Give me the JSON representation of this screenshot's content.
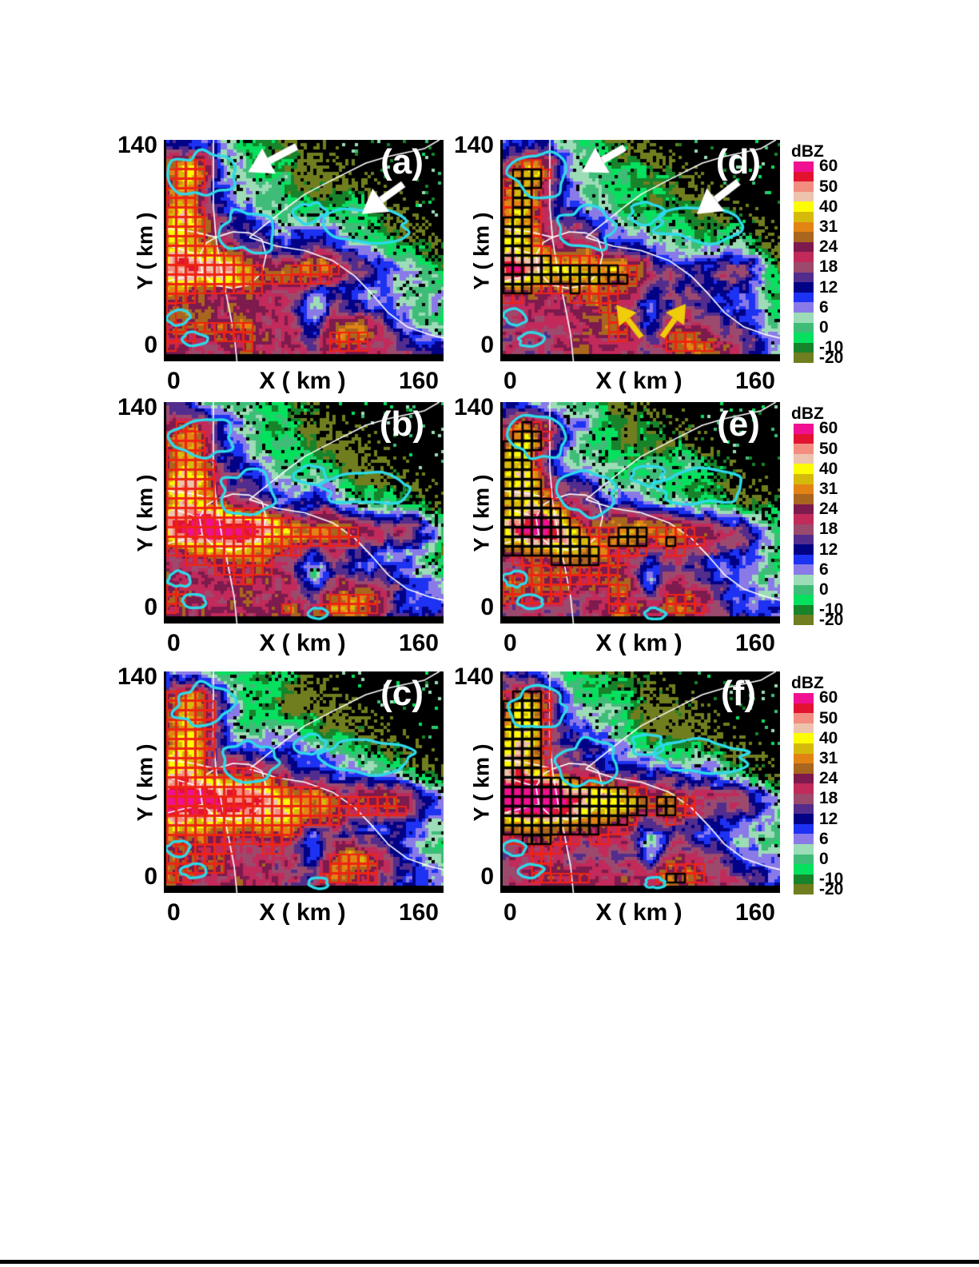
{
  "axes": {
    "y_max": "140",
    "y_min": "0",
    "y_title": "Y ( km )",
    "x_min": "0",
    "x_title": "X ( km )",
    "x_max": "160"
  },
  "chart_data": {
    "type": "heatmap",
    "subtype": "radar-reflectivity-composite",
    "xlabel": "X ( km )",
    "ylabel": "Y ( km )",
    "xlim": [
      0,
      160
    ],
    "ylim": [
      0,
      140
    ],
    "units": "dBZ",
    "grid": false,
    "colorbar": {
      "title": "dBZ",
      "position": "right-of-each-row",
      "n_cells": 20,
      "cell_colors": [
        "#ef1192",
        "#e11331",
        "#f28d80",
        "#eec3ad",
        "#fcfc05",
        "#d5ba0c",
        "#e28414",
        "#a9661f",
        "#7d1a4e",
        "#c12a5a",
        "#9b4a6e",
        "#532d8d",
        "#020287",
        "#1d32f2",
        "#8a7ae8",
        "#9cdcb6",
        "#3fbc78",
        "#06e05f",
        "#17832a",
        "#707e1f"
      ],
      "tick_values": [
        "60",
        "50",
        "40",
        "31",
        "24",
        "18",
        "12",
        "6",
        "0",
        "-10",
        "-20"
      ],
      "tick_cell_index": [
        1,
        3,
        5,
        7,
        9,
        11,
        13,
        15,
        17,
        19,
        20
      ],
      "value_top": 60,
      "value_bottom": -20
    },
    "overlay_colors": {
      "red_grid_box": "#ee2413",
      "black_grid_box": "#000000",
      "cyan_contour": "#2fd9e9",
      "county_border": "#ffffff"
    },
    "panels": [
      {
        "label": "(a)",
        "position": {
          "row": 1,
          "col": 1
        },
        "overlays": [
          "red-grid-boxes",
          "cyan-contours",
          "county-borders"
        ],
        "annotations": [
          {
            "type": "arrow",
            "color_name": "white",
            "color": "#ffffff",
            "from_frac": [
              0.47,
              0.03
            ],
            "to_frac": [
              0.295,
              0.145
            ]
          },
          {
            "type": "arrow",
            "color_name": "white",
            "color": "#ffffff",
            "from_frac": [
              0.855,
              0.2
            ],
            "to_frac": [
              0.705,
              0.335
            ]
          }
        ]
      },
      {
        "label": "(b)",
        "position": {
          "row": 2,
          "col": 1
        },
        "overlays": [
          "red-grid-boxes",
          "cyan-contours",
          "county-borders"
        ],
        "annotations": []
      },
      {
        "label": "(c)",
        "position": {
          "row": 3,
          "col": 1
        },
        "overlays": [
          "red-grid-boxes",
          "cyan-contours",
          "county-borders"
        ],
        "annotations": []
      },
      {
        "label": "(d)",
        "position": {
          "row": 1,
          "col": 2
        },
        "overlays": [
          "red-grid-boxes",
          "black-grid-boxes",
          "cyan-contours",
          "county-borders"
        ],
        "annotations": [
          {
            "type": "arrow",
            "color_name": "white",
            "color": "#ffffff",
            "from_frac": [
              0.44,
              0.035
            ],
            "to_frac": [
              0.285,
              0.145
            ]
          },
          {
            "type": "arrow",
            "color_name": "white",
            "color": "#ffffff",
            "from_frac": [
              0.85,
              0.19
            ],
            "to_frac": [
              0.7,
              0.335
            ]
          },
          {
            "type": "arrow",
            "color_name": "yellow",
            "color": "#f0cd0a",
            "from_frac": [
              0.5,
              0.89
            ],
            "to_frac": [
              0.41,
              0.745
            ]
          },
          {
            "type": "arrow",
            "color_name": "yellow",
            "color": "#f0cd0a",
            "from_frac": [
              0.575,
              0.89
            ],
            "to_frac": [
              0.66,
              0.74
            ]
          }
        ]
      },
      {
        "label": "(e)",
        "position": {
          "row": 2,
          "col": 2
        },
        "overlays": [
          "red-grid-boxes",
          "black-grid-boxes",
          "cyan-contours",
          "county-borders"
        ],
        "annotations": []
      },
      {
        "label": "(f)",
        "position": {
          "row": 3,
          "col": 2
        },
        "overlays": [
          "red-grid-boxes",
          "black-grid-boxes",
          "cyan-contours",
          "county-borders"
        ],
        "annotations": []
      }
    ]
  }
}
